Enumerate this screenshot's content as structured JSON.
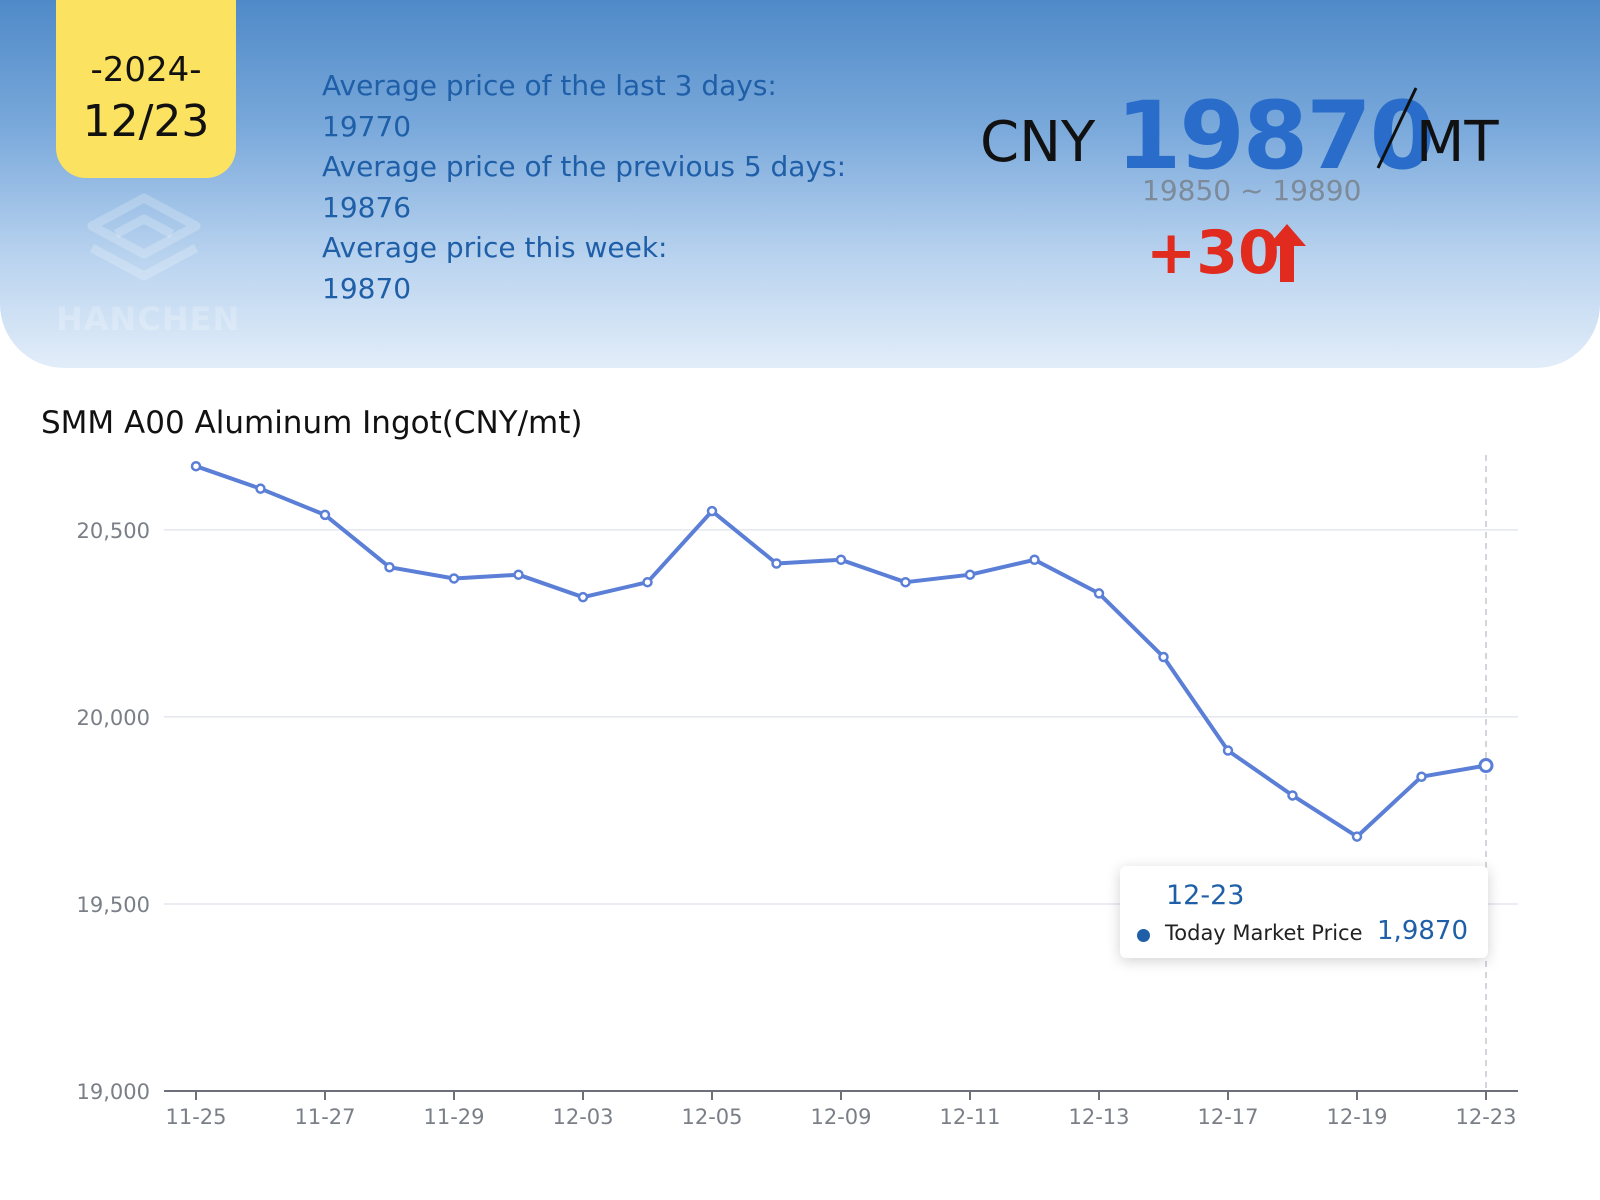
{
  "header": {
    "year": "-2024-",
    "date": "12/23",
    "logo_text": "HANCHEN",
    "averages": [
      {
        "label": "Average price of the last 3 days:",
        "value": "19770"
      },
      {
        "label": "Average price of the previous 5 days:",
        "value": "19876"
      },
      {
        "label": "Average price this week:",
        "value": "19870"
      }
    ],
    "currency": "CNY",
    "price": "19870",
    "unit": "MT",
    "range": "19850 ~ 19890",
    "change": "+30",
    "colors": {
      "price": "#2a6cc9",
      "change_up": "#e02b1e",
      "badge": "#fbe260"
    },
    "icons": {
      "logo": "hanchen-logo-icon",
      "change": "arrow-up-icon"
    }
  },
  "chart_data": {
    "type": "line",
    "title": "SMM A00 Aluminum Ingot(CNY/mt)",
    "x": [
      "11-25",
      "11-26",
      "11-27",
      "11-28",
      "11-29",
      "12-02",
      "12-03",
      "12-04",
      "12-05",
      "12-06",
      "12-09",
      "12-10",
      "12-11",
      "12-12",
      "12-13",
      "12-16",
      "12-17",
      "12-18",
      "12-19",
      "12-20",
      "12-23"
    ],
    "x_tick_labels": [
      "11-25",
      "11-27",
      "11-29",
      "12-03",
      "12-05",
      "12-09",
      "12-11",
      "12-13",
      "12-17",
      "12-19",
      "12-23"
    ],
    "series": [
      {
        "values": [
          20670,
          20610,
          20540,
          20400,
          20370,
          20380,
          20320,
          20360,
          20550,
          20410,
          20420,
          20360,
          20380,
          20420,
          20330,
          20160,
          19910,
          19790,
          19680,
          19840,
          19870
        ]
      }
    ],
    "ylim": [
      19000,
      20700
    ],
    "y_ticks": [
      19000,
      19500,
      20000,
      20500
    ],
    "y_tick_labels": [
      "19,000",
      "19,500",
      "20,000",
      "20,500"
    ],
    "grid": true,
    "line_color": "#5b7fd6",
    "tooltip": {
      "date": "12-23",
      "label": "Today Market Price",
      "value": "1,9870"
    }
  }
}
